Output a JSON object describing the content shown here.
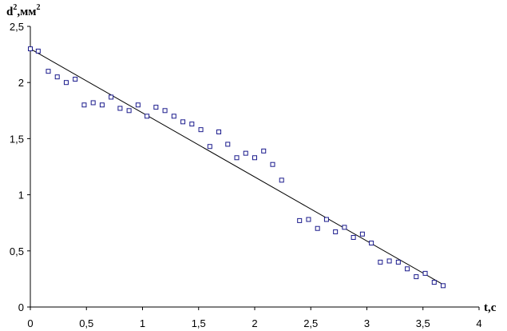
{
  "chart_data": {
    "type": "scatter",
    "title": "",
    "xlabel": "t,c",
    "ylabel_base": "d",
    "ylabel_exp": "2",
    "ylabel_unit": ",мм",
    "ylabel_unit_exp": "2",
    "xlim": [
      0,
      4
    ],
    "ylim": [
      0,
      2.5
    ],
    "x_ticks": [
      0,
      0.5,
      1,
      1.5,
      2,
      2.5,
      3,
      3.5,
      4
    ],
    "x_tick_labels": [
      "0",
      "0,5",
      "1",
      "1,5",
      "2",
      "2,5",
      "3",
      "3,5",
      "4"
    ],
    "y_ticks": [
      0,
      0.5,
      1,
      1.5,
      2,
      2.5
    ],
    "y_tick_labels": [
      "0",
      "0,5",
      "1",
      "1,5",
      "2",
      "2,5"
    ],
    "grid": false,
    "legend": "none",
    "marker_color": "#1a1a8c",
    "line_color": "#000000",
    "series": [
      {
        "marker": "square",
        "x": [
          0.0,
          0.07,
          0.16,
          0.24,
          0.32,
          0.4,
          0.48,
          0.56,
          0.64,
          0.72,
          0.8,
          0.88,
          0.96,
          1.04,
          1.12,
          1.2,
          1.28,
          1.36,
          1.44,
          1.52,
          1.6,
          1.68,
          1.76,
          1.84,
          1.92,
          2.0,
          2.08,
          2.16,
          2.24,
          2.4,
          2.48,
          2.56,
          2.64,
          2.72,
          2.8,
          2.88,
          2.96,
          3.04,
          3.12,
          3.2,
          3.28,
          3.36,
          3.44,
          3.52,
          3.6,
          3.68
        ],
        "y": [
          2.3,
          2.28,
          2.1,
          2.05,
          2.0,
          2.03,
          1.8,
          1.82,
          1.8,
          1.87,
          1.77,
          1.75,
          1.8,
          1.7,
          1.78,
          1.75,
          1.7,
          1.65,
          1.63,
          1.58,
          1.43,
          1.56,
          1.45,
          1.33,
          1.37,
          1.33,
          1.39,
          1.27,
          1.13,
          0.77,
          0.78,
          0.7,
          0.78,
          0.67,
          0.71,
          0.62,
          0.65,
          0.57,
          0.4,
          0.41,
          0.4,
          0.34,
          0.27,
          0.3,
          0.22,
          0.19
        ]
      },
      {
        "type": "line",
        "x": [
          0.0,
          3.68
        ],
        "y": [
          2.3,
          0.2
        ]
      }
    ]
  }
}
